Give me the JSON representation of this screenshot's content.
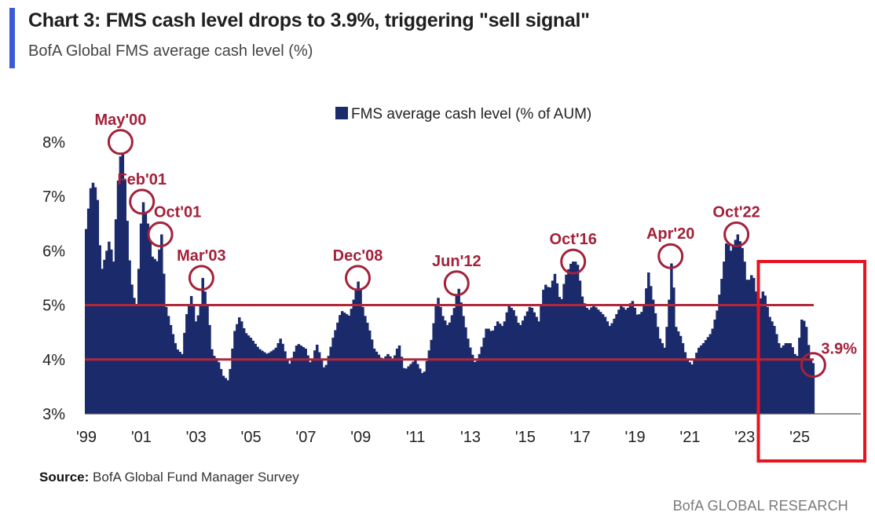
{
  "header": {
    "title": "Chart 3: FMS cash level drops to 3.9%, triggering \"sell signal\"",
    "subtitle": "BofA Global FMS average cash level (%)"
  },
  "footer": {
    "source_label": "Source:",
    "source_text": "BofA Global Fund Manager Survey",
    "brand": "BofA GLOBAL RESEARCH"
  },
  "colors": {
    "bar": "#1b2a6b",
    "threshold": "#b0283c",
    "annotation": "#a3213a",
    "highlight_box": "#e8131f"
  },
  "chart_data": {
    "type": "bar",
    "legend": {
      "label": "FMS average cash level (% of AUM)",
      "placement": "top-center"
    },
    "ylim": [
      3,
      8.3
    ],
    "yticks": [
      {
        "value": 3,
        "label": "3%"
      },
      {
        "value": 4,
        "label": "4%"
      },
      {
        "value": 5,
        "label": "5%"
      },
      {
        "value": 6,
        "label": "6%"
      },
      {
        "value": 7,
        "label": "7%"
      },
      {
        "value": 8,
        "label": "8%"
      }
    ],
    "xlim": [
      1999.0,
      2027.0
    ],
    "xticks": [
      {
        "value": 1999,
        "label": "'99"
      },
      {
        "value": 2001,
        "label": "'01"
      },
      {
        "value": 2003,
        "label": "'03"
      },
      {
        "value": 2005,
        "label": "'05"
      },
      {
        "value": 2007,
        "label": "'07"
      },
      {
        "value": 2009,
        "label": "'09"
      },
      {
        "value": 2011,
        "label": "'11"
      },
      {
        "value": 2013,
        "label": "'13"
      },
      {
        "value": 2015,
        "label": "'15"
      },
      {
        "value": 2017,
        "label": "'17"
      },
      {
        "value": 2019,
        "label": "'19"
      },
      {
        "value": 2021,
        "label": "'21"
      },
      {
        "value": 2023,
        "label": "'23"
      },
      {
        "value": 2025,
        "label": "'25"
      }
    ],
    "thresholds": [
      5.0,
      4.0
    ],
    "keypoints": [
      [
        1999.0,
        6.4
      ],
      [
        1999.2,
        7.3
      ],
      [
        1999.4,
        7.1
      ],
      [
        1999.55,
        5.6
      ],
      [
        1999.7,
        5.9
      ],
      [
        1999.85,
        6.2
      ],
      [
        2000.0,
        5.8
      ],
      [
        2000.15,
        7.2
      ],
      [
        2000.3,
        8.0
      ],
      [
        2000.45,
        7.1
      ],
      [
        2000.55,
        6.0
      ],
      [
        2000.7,
        5.2
      ],
      [
        2000.85,
        5.0
      ],
      [
        2001.0,
        6.5
      ],
      [
        2001.08,
        6.9
      ],
      [
        2001.25,
        6.5
      ],
      [
        2001.4,
        5.9
      ],
      [
        2001.6,
        5.8
      ],
      [
        2001.75,
        6.3
      ],
      [
        2001.9,
        5.0
      ],
      [
        2002.1,
        4.6
      ],
      [
        2002.3,
        4.2
      ],
      [
        2002.5,
        4.1
      ],
      [
        2002.65,
        4.8
      ],
      [
        2002.85,
        5.2
      ],
      [
        2003.0,
        4.7
      ],
      [
        2003.15,
        4.9
      ],
      [
        2003.25,
        5.5
      ],
      [
        2003.45,
        4.9
      ],
      [
        2003.6,
        4.1
      ],
      [
        2003.8,
        4.0
      ],
      [
        2004.0,
        3.7
      ],
      [
        2004.2,
        3.6
      ],
      [
        2004.4,
        4.5
      ],
      [
        2004.6,
        4.8
      ],
      [
        2004.8,
        4.5
      ],
      [
        2005.0,
        4.4
      ],
      [
        2005.3,
        4.2
      ],
      [
        2005.6,
        4.1
      ],
      [
        2005.9,
        4.2
      ],
      [
        2006.1,
        4.4
      ],
      [
        2006.4,
        3.9
      ],
      [
        2006.7,
        4.3
      ],
      [
        2007.0,
        4.2
      ],
      [
        2007.2,
        3.9
      ],
      [
        2007.4,
        4.3
      ],
      [
        2007.7,
        3.8
      ],
      [
        2008.0,
        4.4
      ],
      [
        2008.3,
        4.9
      ],
      [
        2008.6,
        4.8
      ],
      [
        2008.8,
        5.2
      ],
      [
        2008.95,
        5.5
      ],
      [
        2009.1,
        4.9
      ],
      [
        2009.3,
        4.6
      ],
      [
        2009.5,
        4.2
      ],
      [
        2009.8,
        4.0
      ],
      [
        2010.0,
        4.1
      ],
      [
        2010.2,
        4.0
      ],
      [
        2010.4,
        4.3
      ],
      [
        2010.6,
        3.8
      ],
      [
        2010.8,
        3.9
      ],
      [
        2011.0,
        4.0
      ],
      [
        2011.3,
        3.7
      ],
      [
        2011.6,
        4.4
      ],
      [
        2011.8,
        5.2
      ],
      [
        2012.0,
        4.8
      ],
      [
        2012.2,
        4.6
      ],
      [
        2012.45,
        5.0
      ],
      [
        2012.55,
        5.4
      ],
      [
        2012.75,
        4.8
      ],
      [
        2012.95,
        4.3
      ],
      [
        2013.2,
        3.9
      ],
      [
        2013.4,
        4.2
      ],
      [
        2013.6,
        4.6
      ],
      [
        2013.8,
        4.5
      ],
      [
        2014.0,
        4.7
      ],
      [
        2014.2,
        4.6
      ],
      [
        2014.4,
        5.0
      ],
      [
        2014.6,
        4.9
      ],
      [
        2014.8,
        4.6
      ],
      [
        2015.0,
        4.8
      ],
      [
        2015.2,
        5.0
      ],
      [
        2015.5,
        4.7
      ],
      [
        2015.7,
        5.4
      ],
      [
        2015.9,
        5.3
      ],
      [
        2016.1,
        5.6
      ],
      [
        2016.3,
        5.0
      ],
      [
        2016.45,
        5.5
      ],
      [
        2016.7,
        5.8
      ],
      [
        2016.9,
        5.8
      ],
      [
        2017.1,
        5.1
      ],
      [
        2017.3,
        4.9
      ],
      [
        2017.5,
        5.0
      ],
      [
        2017.7,
        4.9
      ],
      [
        2017.9,
        4.8
      ],
      [
        2018.1,
        4.6
      ],
      [
        2018.3,
        4.8
      ],
      [
        2018.5,
        5.0
      ],
      [
        2018.7,
        4.9
      ],
      [
        2018.9,
        5.1
      ],
      [
        2019.1,
        4.8
      ],
      [
        2019.3,
        4.9
      ],
      [
        2019.5,
        5.6
      ],
      [
        2019.7,
        5.0
      ],
      [
        2019.9,
        4.4
      ],
      [
        2020.1,
        4.2
      ],
      [
        2020.25,
        5.1
      ],
      [
        2020.35,
        5.9
      ],
      [
        2020.5,
        4.6
      ],
      [
        2020.7,
        4.4
      ],
      [
        2020.9,
        4.0
      ],
      [
        2021.1,
        3.9
      ],
      [
        2021.3,
        4.2
      ],
      [
        2021.5,
        4.3
      ],
      [
        2021.8,
        4.5
      ],
      [
        2022.0,
        4.9
      ],
      [
        2022.2,
        5.6
      ],
      [
        2022.35,
        6.2
      ],
      [
        2022.5,
        6.0
      ],
      [
        2022.75,
        6.3
      ],
      [
        2022.95,
        6.0
      ],
      [
        2023.1,
        5.4
      ],
      [
        2023.3,
        5.6
      ],
      [
        2023.5,
        5.0
      ],
      [
        2023.7,
        5.3
      ],
      [
        2023.9,
        4.8
      ],
      [
        2024.1,
        4.6
      ],
      [
        2024.3,
        4.2
      ],
      [
        2024.5,
        4.3
      ],
      [
        2024.7,
        4.3
      ],
      [
        2024.9,
        4.0
      ],
      [
        2025.1,
        4.8
      ],
      [
        2025.25,
        4.6
      ],
      [
        2025.4,
        4.0
      ],
      [
        2025.55,
        3.9
      ]
    ],
    "annotations": [
      {
        "label": "May'00",
        "x": 2000.3,
        "y": 8.0,
        "label_side": "above"
      },
      {
        "label": "Feb'01",
        "x": 2001.08,
        "y": 6.9,
        "label_side": "above"
      },
      {
        "label": "Oct'01",
        "x": 2001.75,
        "y": 6.3,
        "label_side": "above-right"
      },
      {
        "label": "Mar'03",
        "x": 2003.25,
        "y": 5.5,
        "label_side": "above"
      },
      {
        "label": "Dec'08",
        "x": 2008.95,
        "y": 5.5,
        "label_side": "above"
      },
      {
        "label": "Jun'12",
        "x": 2012.55,
        "y": 5.4,
        "label_side": "above"
      },
      {
        "label": "Oct'16",
        "x": 2016.8,
        "y": 5.8,
        "label_side": "above"
      },
      {
        "label": "Apr'20",
        "x": 2020.35,
        "y": 5.9,
        "label_side": "above"
      },
      {
        "label": "Oct'22",
        "x": 2022.75,
        "y": 6.3,
        "label_side": "above"
      },
      {
        "label": "3.9%",
        "x": 2025.55,
        "y": 3.9,
        "label_side": "right"
      }
    ],
    "highlight_region": {
      "x_start": 2023.55,
      "x_end": 2027.0
    }
  }
}
